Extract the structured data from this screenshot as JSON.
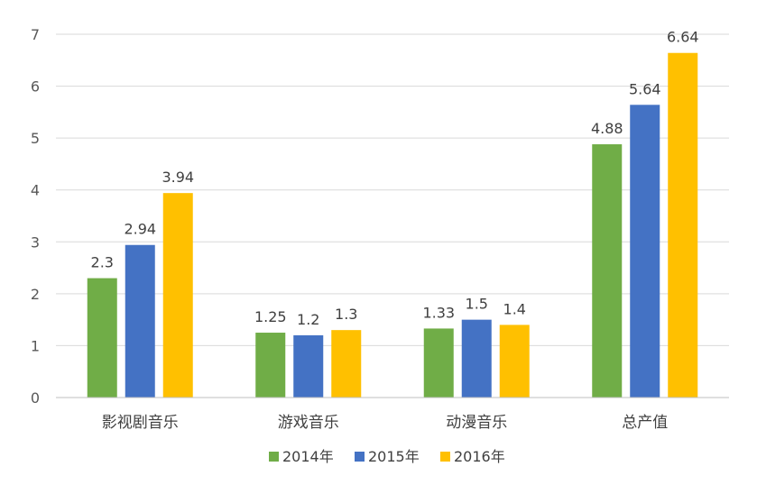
{
  "chart_data": {
    "type": "bar",
    "title": "",
    "xlabel": "",
    "ylabel": "",
    "categories": [
      "影视剧音乐",
      "游戏音乐",
      "动漫音乐",
      "总产值"
    ],
    "ylim": [
      0,
      7
    ],
    "yticks": [
      0,
      1,
      2,
      3,
      4,
      5,
      6,
      7
    ],
    "grid": true,
    "legend_position": "bottom",
    "series": [
      {
        "name": "2014年",
        "color": "#70ad47",
        "values": [
          2.3,
          1.25,
          1.33,
          4.88
        ],
        "labels": [
          "2.3",
          "1.25",
          "1.33",
          "4.88"
        ]
      },
      {
        "name": "2015年",
        "color": "#4472c4",
        "values": [
          2.94,
          1.2,
          1.5,
          5.64
        ],
        "labels": [
          "2.94",
          "1.2",
          "1.5",
          "5.64"
        ]
      },
      {
        "name": "2016年",
        "color": "#ffc000",
        "values": [
          3.94,
          1.3,
          1.4,
          6.64
        ],
        "labels": [
          "3.94",
          "1.3",
          "1.4",
          "6.64"
        ]
      }
    ]
  }
}
